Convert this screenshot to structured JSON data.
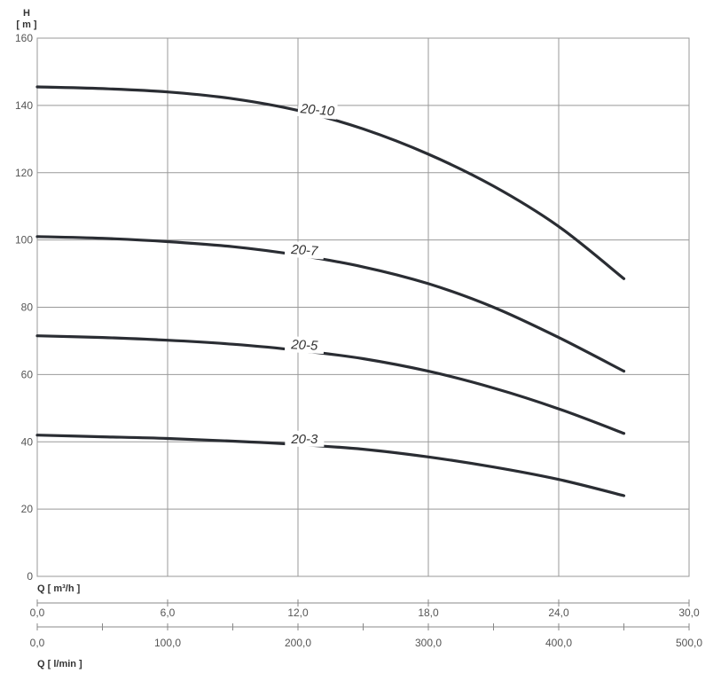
{
  "chart_data": {
    "type": "line",
    "y_title_line1": "H",
    "y_title_line2": "[ m ]",
    "x_title_top": "Q [ m³/h ]",
    "x_title_bottom": "Q [ l/min ]",
    "ylim": [
      0,
      160
    ],
    "xlim": [
      0,
      30
    ],
    "y_ticks": [
      "0",
      "20",
      "40",
      "60",
      "80",
      "100",
      "120",
      "140",
      "160"
    ],
    "x_ticks_m3h": [
      "0,0",
      "6,0",
      "12,0",
      "18,0",
      "24,0",
      "30,0"
    ],
    "x_ticks_lmin": [
      "0,0",
      "100,0",
      "200,0",
      "300,0",
      "400,0",
      "500,0"
    ],
    "lmin_max": 500,
    "grid": true,
    "series": [
      {
        "name": "20-10",
        "x": [
          0,
          3,
          6,
          9,
          12,
          15,
          18,
          21,
          24,
          27
        ],
        "values": [
          145.5,
          145,
          144,
          142,
          138.5,
          133,
          125.5,
          116,
          104,
          88.5
        ]
      },
      {
        "name": "20-7",
        "x": [
          0,
          3,
          6,
          9,
          12,
          15,
          18,
          21,
          24,
          27
        ],
        "values": [
          101,
          100.5,
          99.5,
          98,
          95.5,
          92,
          87,
          80,
          71,
          61
        ]
      },
      {
        "name": "20-5",
        "x": [
          0,
          3,
          6,
          9,
          12,
          15,
          18,
          21,
          24,
          27
        ],
        "values": [
          71.5,
          71,
          70.2,
          69,
          67.2,
          64.7,
          61,
          56,
          49.8,
          42.5
        ]
      },
      {
        "name": "20-3",
        "x": [
          0,
          3,
          6,
          9,
          12,
          15,
          18,
          21,
          24,
          27
        ],
        "values": [
          42,
          41.5,
          41,
          40.2,
          39.2,
          37.8,
          35.5,
          32.5,
          28.8,
          24
        ]
      }
    ]
  }
}
